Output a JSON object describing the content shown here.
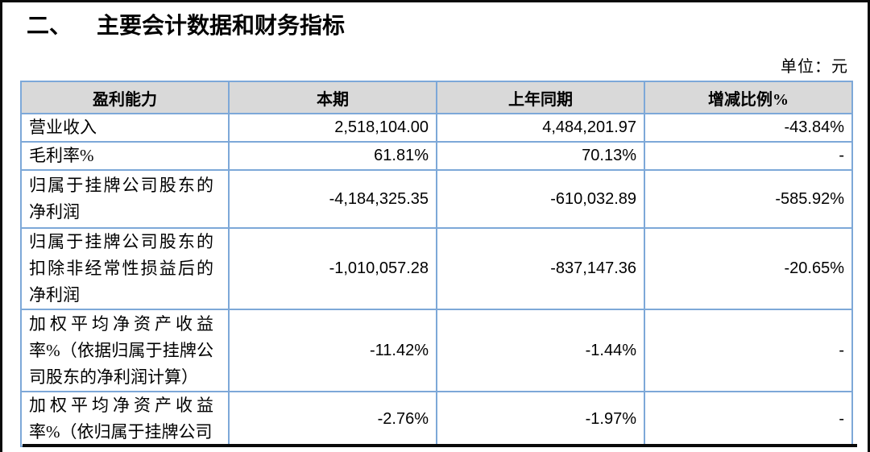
{
  "page": {
    "section_number": "二、",
    "title": "主要会计数据和财务指标",
    "unit_label": "单位：元"
  },
  "colors": {
    "table_border": "#7da8d8",
    "header_background": "#d9d9d9",
    "text": "#000000"
  },
  "table": {
    "headers": [
      "盈利能力",
      "本期",
      "上年同期",
      "增减比例%"
    ],
    "rows": [
      {
        "label_lines": [
          "营业收入"
        ],
        "current": "2,518,104.00",
        "prior": "4,484,201.97",
        "change": "-43.84%"
      },
      {
        "label_lines": [
          "毛利率%"
        ],
        "current": "61.81%",
        "prior": "70.13%",
        "change": "-"
      },
      {
        "label_lines": [
          "归属于挂牌公司股东的",
          "净利润"
        ],
        "current": "-4,184,325.35",
        "prior": "-610,032.89",
        "change": "-585.92%"
      },
      {
        "label_lines": [
          "归属于挂牌公司股东的",
          "扣除非经常性损益后的",
          "净利润"
        ],
        "current": "-1,010,057.28",
        "prior": "-837,147.36",
        "change": "-20.65%"
      },
      {
        "label_lines": [
          "加权平均净资产收益",
          "率%（依据归属于挂牌公",
          "司股东的净利润计算）"
        ],
        "current": "-11.42%",
        "prior": "-1.44%",
        "change": "-"
      },
      {
        "label_lines": [
          "加权平均净资产收益",
          "率%（依归属于挂牌公司"
        ],
        "current": "-2.76%",
        "prior": "-1.97%",
        "change": "-"
      }
    ]
  }
}
